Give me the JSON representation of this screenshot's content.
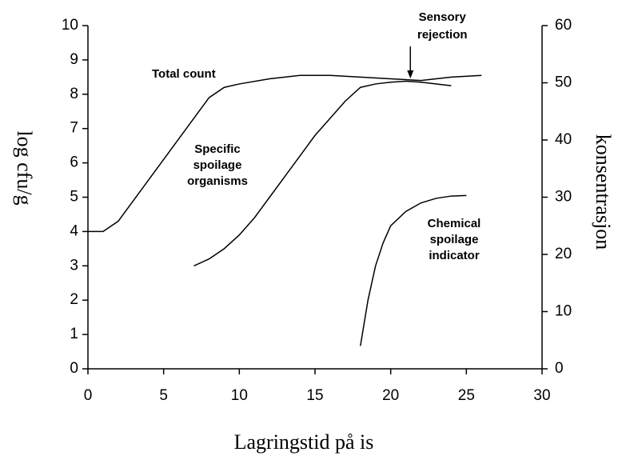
{
  "chart_data": {
    "type": "line",
    "xlabel": "Lagringstid på is",
    "ylabel": "log cfu/g",
    "y2label": "konsentrasjon",
    "xlim": [
      0,
      30
    ],
    "xticks": [
      0,
      5,
      10,
      15,
      20,
      25,
      30
    ],
    "ylim": [
      0,
      10
    ],
    "yticks": [
      0,
      1,
      2,
      3,
      4,
      5,
      6,
      7,
      8,
      9,
      10
    ],
    "y2lim": [
      0,
      60
    ],
    "y2ticks": [
      0,
      10,
      20,
      30,
      40,
      50,
      60
    ],
    "series": [
      {
        "label": [
          "Total count"
        ],
        "color": "#000000",
        "x": [
          0,
          1,
          2,
          3,
          4,
          5,
          6,
          7,
          8,
          9,
          10,
          12,
          14,
          16,
          18,
          20,
          22,
          24,
          26
        ],
        "values": [
          4,
          4,
          4.3,
          4.9,
          5.5,
          6.1,
          6.7,
          7.3,
          7.9,
          8.2,
          8.3,
          8.45,
          8.55,
          8.55,
          8.5,
          8.45,
          8.4,
          8.5,
          8.55
        ]
      },
      {
        "label": [
          "Specific",
          "spoilage",
          "organisms"
        ],
        "color": "#000000",
        "x": [
          7,
          8,
          9,
          10,
          11,
          12,
          13,
          14,
          15,
          16,
          17,
          18,
          19,
          20,
          21,
          22,
          24
        ],
        "values": [
          3.0,
          3.2,
          3.5,
          3.9,
          4.4,
          5.0,
          5.6,
          6.2,
          6.8,
          7.3,
          7.8,
          8.2,
          8.3,
          8.35,
          8.38,
          8.35,
          8.25
        ]
      },
      {
        "label": [
          "Chemical",
          "spoilage",
          "indicator"
        ],
        "color": "#000000",
        "axis": "y2",
        "x": [
          18,
          18.5,
          19,
          19.5,
          20,
          21,
          22,
          23,
          24,
          25
        ],
        "values": [
          4,
          12,
          18,
          22,
          25,
          27.5,
          29,
          29.8,
          30.2,
          30.3
        ]
      }
    ],
    "annotations": [
      {
        "lines": [
          "Sensory",
          "rejection"
        ],
        "x": 21.3
      }
    ]
  }
}
